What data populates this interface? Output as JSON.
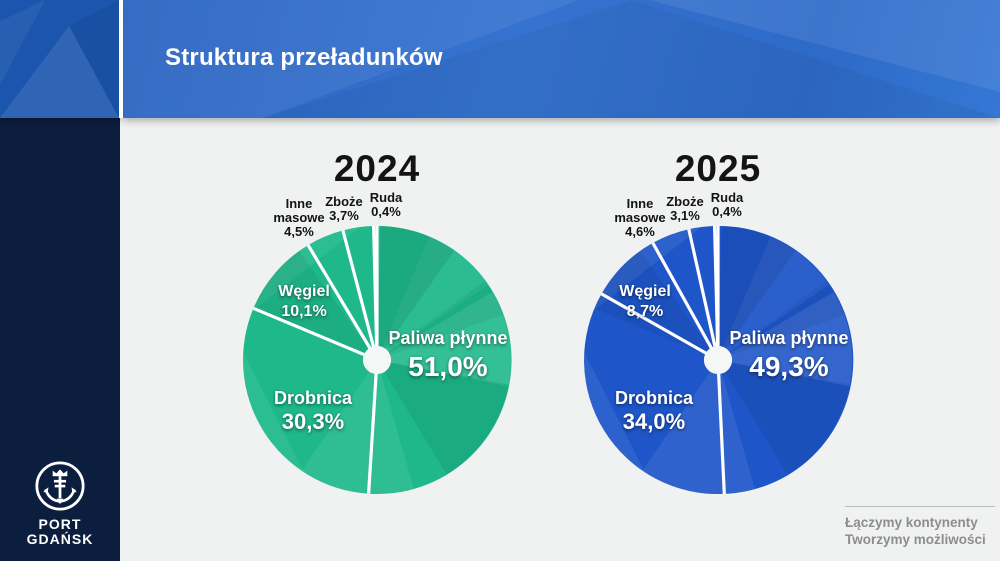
{
  "header": {
    "title": "Struktura przeładunków"
  },
  "sidebar": {
    "brand_line1": "PORT",
    "brand_line2": "GDAŃSK",
    "logo_icon": "port-gdansk-anchor-crown-emblem"
  },
  "footer": {
    "line1": "Łączymy kontynenty",
    "line2": "Tworzymy możliwości"
  },
  "colors": {
    "header_blue": "#2f6cc9",
    "corner_blue": "#1c55ae",
    "sidebar_navy": "#0c1e3e",
    "background": "#f0f1f1",
    "pie_2024_green": "#1eb88b",
    "pie_2025_blue": "#1e55c8",
    "slice_divider_white": "#ffffff",
    "footer_text_gray": "#8d8d8d",
    "label_black": "#131313",
    "label_white": "#ffffff"
  },
  "chart_data": [
    {
      "type": "pie",
      "title": "2024",
      "unit": "percent",
      "base_color": "#1eb88b",
      "start_angle_deg": 0,
      "direction": "clockwise",
      "hole_radius_ratio": 0.105,
      "slices": [
        {
          "label": "Paliwa płynne",
          "value": 51.0,
          "display": "51,0%"
        },
        {
          "label": "Drobnica",
          "value": 30.3,
          "display": "30,3%"
        },
        {
          "label": "Węgiel",
          "value": 10.1,
          "display": "10,1%"
        },
        {
          "label": "Inne masowe",
          "value": 4.5,
          "display": "4,5%"
        },
        {
          "label": "Zboże",
          "value": 3.7,
          "display": "3,7%"
        },
        {
          "label": "Ruda",
          "value": 0.4,
          "display": "0,4%"
        }
      ]
    },
    {
      "type": "pie",
      "title": "2025",
      "unit": "percent",
      "base_color": "#1e55c8",
      "start_angle_deg": 0,
      "direction": "clockwise",
      "hole_radius_ratio": 0.105,
      "slices": [
        {
          "label": "Paliwa płynne",
          "value": 49.3,
          "display": "49,3%"
        },
        {
          "label": "Drobnica",
          "value": 34.0,
          "display": "34,0%"
        },
        {
          "label": "Węgiel",
          "value": 8.7,
          "display": "8,7%"
        },
        {
          "label": "Inne masowe",
          "value": 4.6,
          "display": "4,6%"
        },
        {
          "label": "Zboże",
          "value": 3.1,
          "display": "3,1%"
        },
        {
          "label": "Ruda",
          "value": 0.4,
          "display": "0,4%"
        }
      ]
    }
  ]
}
